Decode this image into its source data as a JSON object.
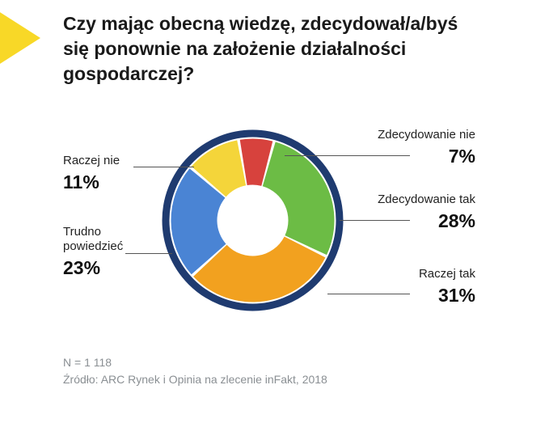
{
  "title": "Czy mając obecną wiedzę, zdecydował/a/byś się ponownie na założenie działalności gospodarczej?",
  "chart": {
    "type": "donut",
    "outer_ring_color": "#1f3b70",
    "outer_ring_width": 9,
    "inner_hole_color": "#ffffff",
    "background_color": "#ffffff",
    "slices": [
      {
        "label": "Zdecydowanie nie",
        "value": 7,
        "value_text": "7%",
        "color": "#d7423d"
      },
      {
        "label": "Zdecydowanie tak",
        "value": 28,
        "value_text": "28%",
        "color": "#6cbc45"
      },
      {
        "label": "Raczej tak",
        "value": 31,
        "value_text": "31%",
        "color": "#f2a11f"
      },
      {
        "label": "Trudno powiedzieć",
        "value": 23,
        "value_text": "23%",
        "color": "#4a84d4"
      },
      {
        "label": "Raczej nie",
        "value": 11,
        "value_text": "11%",
        "color": "#f4d53a"
      }
    ],
    "label_fontsize": 15,
    "value_fontsize": 23,
    "title_fontsize": 23,
    "title_fontweight": 800
  },
  "footnote": {
    "n": "N = 1 118",
    "source": "Źródło: ARC Rynek i Opinia na zlecenie inFakt, 2018",
    "color": "#8a8f93",
    "fontsize": 14
  }
}
